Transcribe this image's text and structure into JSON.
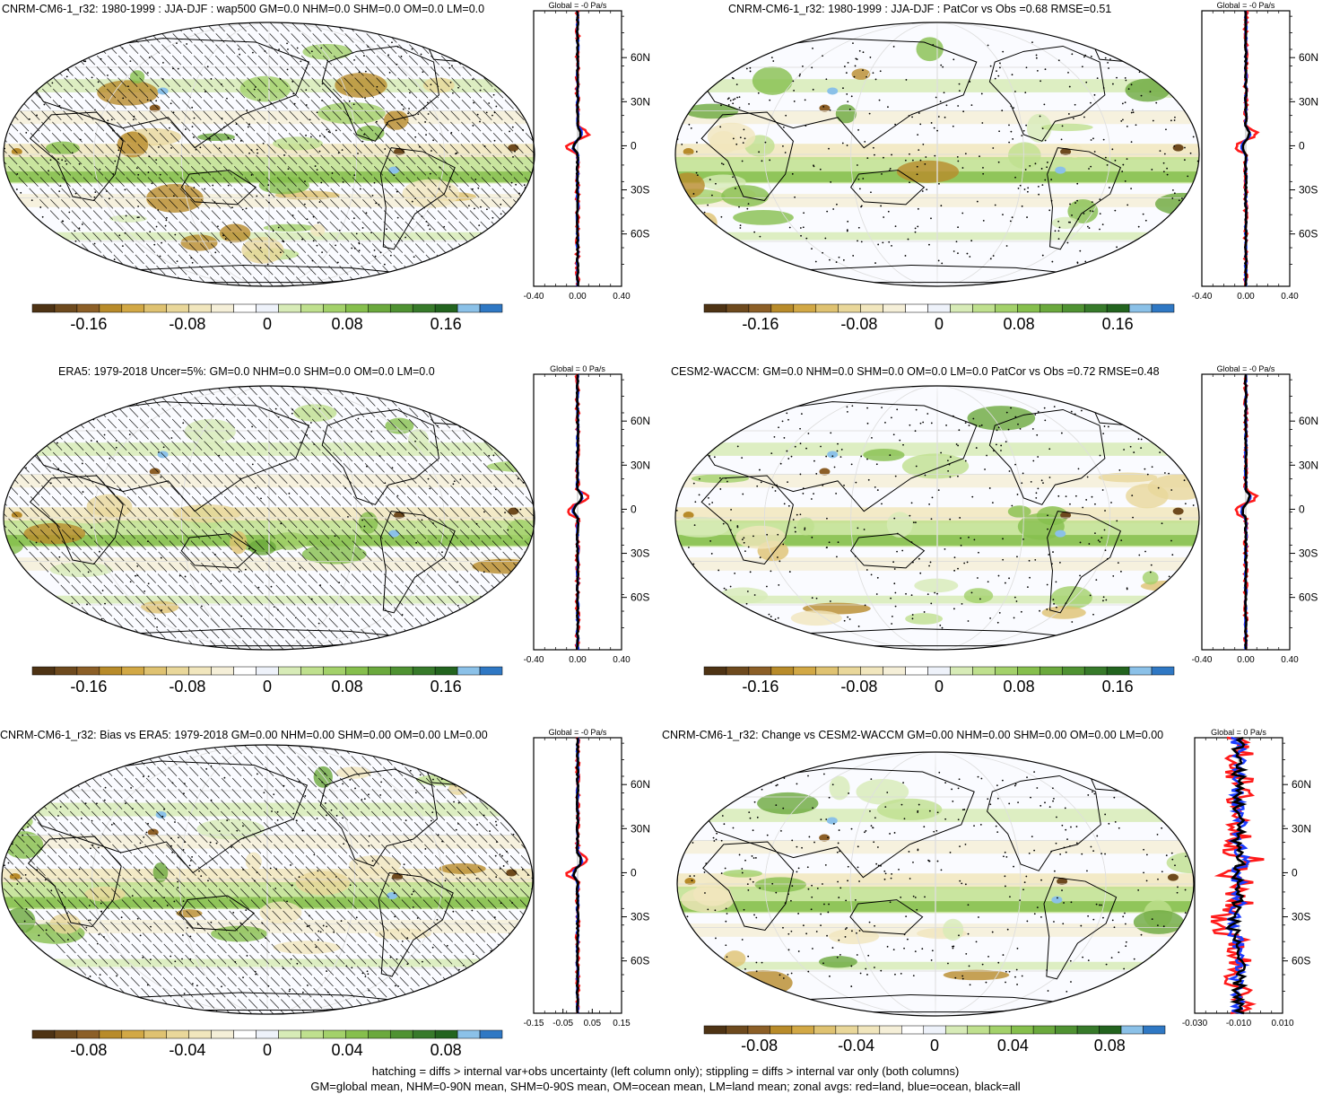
{
  "panels": [
    {
      "title": "CNRM-CM6-1_r32: 1980-1999 : JJA-DJF : wap500 GM=0.0 NHM=0.0 SHM=0.0 OM=0.0 LM=0.0",
      "zonal_title": "Global = -0 Pa/s",
      "lat_ticks": [
        "60N",
        "30N",
        "0",
        "30S",
        "60S"
      ],
      "zonal_x_ticks": [
        "-0.40",
        "0.00",
        "0.40"
      ],
      "colorbar_labels": [
        "-0.16",
        "-0.08",
        "0",
        "0.08",
        "0.16"
      ],
      "hatching": true,
      "stipple_density": 0.45
    },
    {
      "title": "CNRM-CM6-1_r32: 1980-1999 : JJA-DJF : PatCor vs Obs =0.68 RMSE=0.51",
      "zonal_title": "Global = -0 Pa/s",
      "lat_ticks": [
        "60N",
        "30N",
        "0",
        "30S",
        "60S"
      ],
      "zonal_x_ticks": [
        "-0.40",
        "0.00",
        "0.40"
      ],
      "colorbar_labels": [
        "-0.16",
        "-0.08",
        "0",
        "0.08",
        "0.16"
      ],
      "hatching": false,
      "stipple_density": 0.55
    },
    {
      "title": "ERA5: 1979-2018 Uncer=5%: GM=0.0 NHM=0.0 SHM=0.0 OM=0.0 LM=0.0",
      "zonal_title": "Global = 0 Pa/s",
      "lat_ticks": [
        "60N",
        "30N",
        "0",
        "30S",
        "60S"
      ],
      "zonal_x_ticks": [
        "-0.40",
        "0.00",
        "0.40"
      ],
      "colorbar_labels": [
        "-0.16",
        "-0.08",
        "0",
        "0.08",
        "0.16"
      ],
      "hatching": true,
      "stipple_density": 0.15
    },
    {
      "title": "CESM2-WACCM: GM=0.0 NHM=0.0 SHM=0.0 OM=0.0 LM=0.0 PatCor vs Obs =0.72 RMSE=0.48",
      "zonal_title": "Global = -0 Pa/s",
      "lat_ticks": [
        "60N",
        "30N",
        "0",
        "30S",
        "60S"
      ],
      "zonal_x_ticks": [
        "-0.40",
        "0.00",
        "0.40"
      ],
      "colorbar_labels": [
        "-0.16",
        "-0.08",
        "0",
        "0.08",
        "0.16"
      ],
      "hatching": false,
      "stipple_density": 0.5
    },
    {
      "title": "CNRM-CM6-1_r32: Bias vs ERA5: 1979-2018 GM=0.00 NHM=0.00 SHM=0.00 OM=0.00 LM=0.00",
      "zonal_title": "Global = -0 Pa/s",
      "lat_ticks": [
        "60N",
        "30N",
        "0",
        "30S",
        "60S"
      ],
      "zonal_x_ticks": [
        "-0.15",
        "-0.05",
        "0.05",
        "0.15"
      ],
      "colorbar_labels": [
        "-0.08",
        "-0.04",
        "0",
        "0.04",
        "0.08"
      ],
      "hatching": true,
      "stipple_density": 0.35
    },
    {
      "title": "CNRM-CM6-1_r32: Change vs CESM2-WACCM GM=0.00 NHM=0.00 SHM=0.00 OM=0.00 LM=0.00",
      "zonal_title": "Global = 0 Pa/s",
      "lat_ticks": [
        "60N",
        "30N",
        "0",
        "30S",
        "60S"
      ],
      "zonal_x_ticks": [
        "-0.030",
        "-0.010",
        "0.010"
      ],
      "colorbar_labels": [
        "-0.08",
        "-0.04",
        "0",
        "0.04",
        "0.08"
      ],
      "hatching": false,
      "stipple_density": 0.5
    }
  ],
  "colors": {
    "palette": [
      "#4e3314",
      "#6e4a1e",
      "#8c5f27",
      "#b88b2a",
      "#d2a845",
      "#dfc271",
      "#e9d79a",
      "#f1e6bd",
      "#f5efd8",
      "#ffffff",
      "#eef2fa",
      "#d7ebb7",
      "#bfe08e",
      "#a3d16a",
      "#86bf4d",
      "#6ba93d",
      "#4f9232",
      "#377a2a",
      "#23641f",
      "#8bc1e8",
      "#2f78c4"
    ],
    "land": "#d5ecb8",
    "coast": "#000000",
    "zonal_land": "#ff1a1a",
    "zonal_ocean": "#1a3bff",
    "zonal_all": "#000000"
  },
  "footer": {
    "line1": "hatching = diffs > internal var+obs uncertainty (left column only); stippling = diffs > internal var only (both columns)",
    "line2": "GM=global mean, NHM=0-90N mean, SHM=0-90S mean, OM=ocean mean, LM=land mean; zonal avgs: red=land, blue=ocean, black=all"
  }
}
